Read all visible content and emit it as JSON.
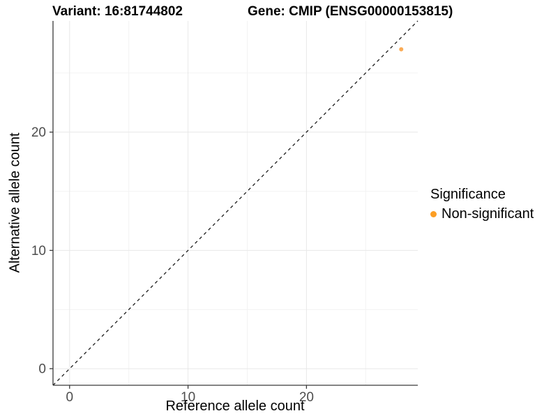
{
  "header": {
    "variant_title": "Variant: 16:81744802",
    "gene_title": "Gene: CMIP (ENSG00000153815)"
  },
  "legend": {
    "title": "Significance",
    "items": [
      {
        "label": "Non-significant",
        "color": "#FC9E24"
      }
    ]
  },
  "colors": {
    "grid_major": "#E8E8E8",
    "grid_minor": "#F3F3F3",
    "axis_line": "#3A3A3A",
    "tick_text": "#4D4D4D",
    "identity_line": "#1A1A1A",
    "point": "#F9A242"
  },
  "chart_data": {
    "type": "scatter",
    "title": "Variant: 16:81744802 | Gene: CMIP (ENSG00000153815)",
    "xlabel": "Reference allele count",
    "ylabel": "Alternative allele count",
    "xlim": [
      -1.4,
      29.4
    ],
    "ylim": [
      -1.4,
      29.4
    ],
    "x_ticks": [
      0,
      10,
      20
    ],
    "y_ticks": [
      0,
      10,
      20
    ],
    "x_minor_ticks": [
      5,
      15,
      25
    ],
    "y_minor_ticks": [
      5,
      15,
      25
    ],
    "grid": "major+minor",
    "legend_position": "right",
    "reference_line": {
      "kind": "identity y=x",
      "style": "dashed"
    },
    "series": [
      {
        "name": "Non-significant",
        "points": [
          {
            "x": 28,
            "y": 27
          }
        ]
      }
    ]
  }
}
